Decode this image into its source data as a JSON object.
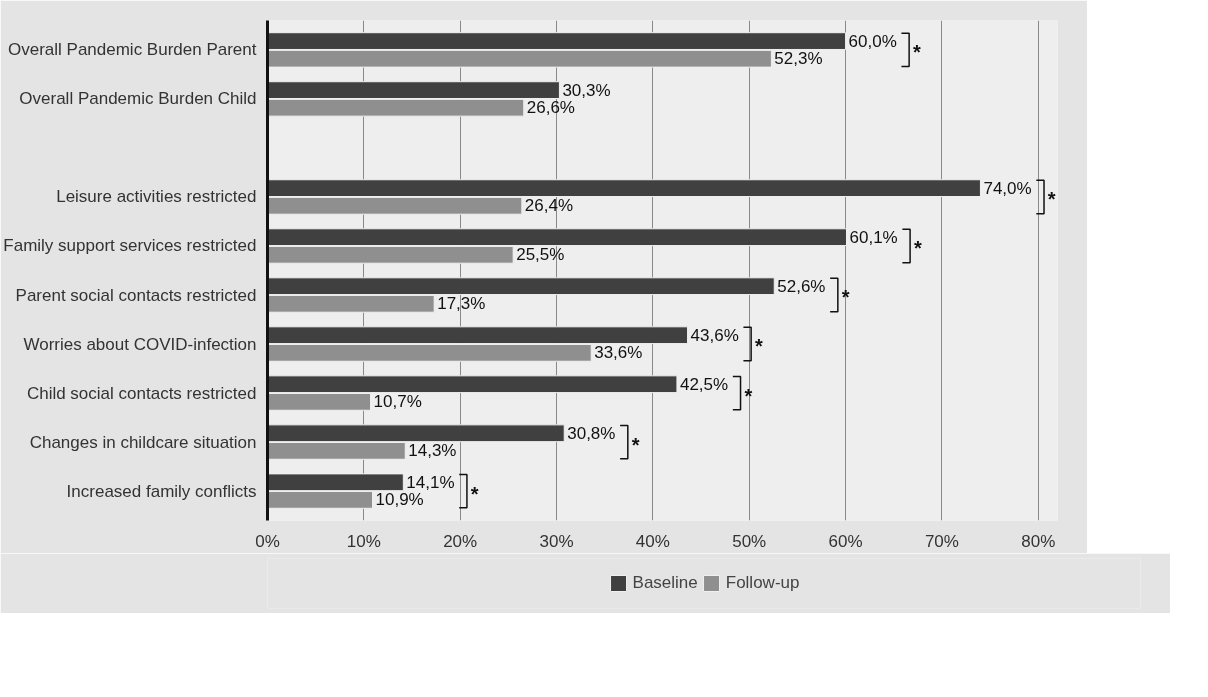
{
  "chart_data": {
    "type": "bar",
    "orientation": "horizontal",
    "categories": [
      "Overall Pandemic Burden Parent",
      "Overall Pandemic Burden Child",
      null,
      "Leisure activities restricted",
      "Family support services restricted",
      "Parent social contacts restricted",
      "Worries about COVID-infection",
      "Child social contacts restricted",
      "Changes in childcare situation",
      "Increased family conflicts"
    ],
    "series": [
      {
        "name": "Baseline",
        "color": "#404040",
        "values": [
          60.0,
          30.3,
          null,
          74.0,
          60.1,
          52.6,
          43.6,
          42.5,
          30.8,
          14.1
        ],
        "value_labels": [
          "60,0%",
          "30,3%",
          null,
          "74,0%",
          "60,1%",
          "52,6%",
          "43,6%",
          "42,5%",
          "30,8%",
          "14,1%"
        ]
      },
      {
        "name": "Follow-up",
        "color": "#8f8f8f",
        "values": [
          52.3,
          26.6,
          null,
          26.4,
          25.5,
          17.3,
          33.6,
          10.7,
          14.3,
          10.9
        ],
        "value_labels": [
          "52,3%",
          "26,6%",
          null,
          "26,4%",
          "25,5%",
          "17,3%",
          "33,6%",
          "10,7%",
          "14,3%",
          "10,9%"
        ]
      }
    ],
    "xlim": [
      0,
      82
    ],
    "xticks": [
      {
        "value": 0,
        "label": "0%"
      },
      {
        "value": 10,
        "label": "10%"
      },
      {
        "value": 20,
        "label": "20%"
      },
      {
        "value": 30,
        "label": "30%"
      },
      {
        "value": 40,
        "label": "40%"
      },
      {
        "value": 50,
        "label": "50%"
      },
      {
        "value": 60,
        "label": "60%"
      },
      {
        "value": 70,
        "label": "70%"
      },
      {
        "value": 80,
        "label": "80%"
      }
    ],
    "grid": "x",
    "legend": "bottom",
    "annotations": [
      "*",
      "*",
      "*",
      "*",
      "*",
      "*",
      "*",
      "*"
    ]
  }
}
